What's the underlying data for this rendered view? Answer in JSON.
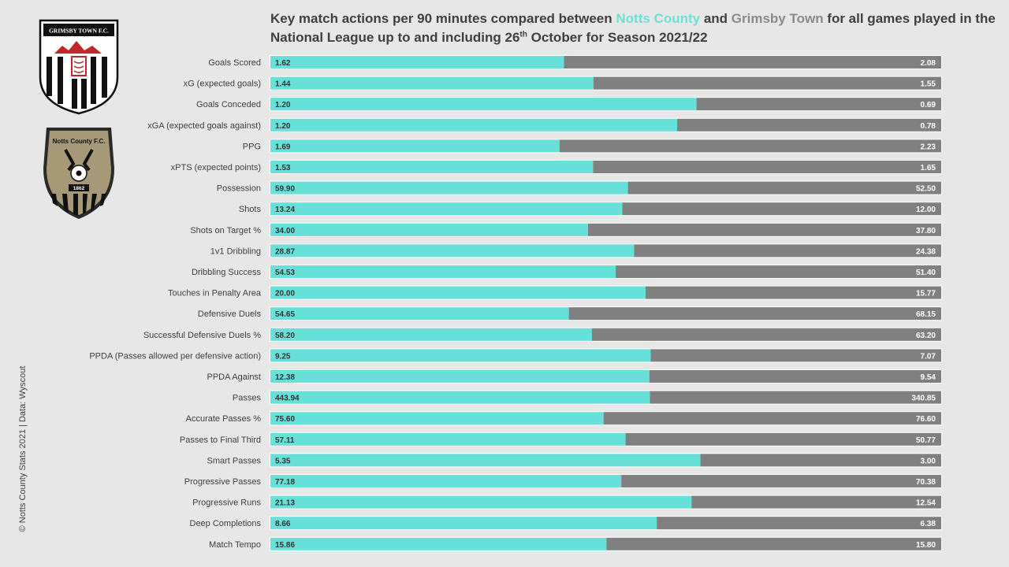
{
  "header": {
    "title_pre": "Key match actions per 90 minutes compared between ",
    "team_a": "Notts County",
    "title_and": " and ",
    "team_b": "Grimsby Town",
    "title_mid": " for all games played in the National League up to and including 26",
    "title_sup": "th",
    "title_post": " October for Season 2021/22"
  },
  "credit": "© Notts County Stats 2021 | Data: Wyscout",
  "logos": {
    "grimsby_text": "GRIMSBY TOWN F.C.",
    "notts_text": "Notts County F.C.",
    "notts_year": "1862"
  },
  "colors": {
    "notts": "#67e0da",
    "grimsby": "#808080",
    "background": "#e7e7e7"
  },
  "chart_data": {
    "type": "bar",
    "orientation": "horizontal",
    "stacked_percent": true,
    "categories": [
      "Goals Scored",
      "xG (expected goals)",
      "Goals Conceded",
      "xGA (expected goals against)",
      "PPG",
      "xPTS (expected points)",
      "Possession",
      "Shots",
      "Shots on Target %",
      "1v1 Dribbling",
      "Dribbling Success",
      "Touches in Penalty Area",
      "Defensive Duels",
      "Successful Defensive Duels %",
      "PPDA (Passes allowed per defensive action)",
      "PPDA Against",
      "Passes",
      "Accurate Passes %",
      "Passes to Final Third",
      "Smart Passes",
      "Progressive Passes",
      "Progressive Runs",
      "Deep Completions",
      "Match Tempo"
    ],
    "series": [
      {
        "name": "Notts County",
        "values": [
          "1.62",
          "1.44",
          "1.20",
          "1.20",
          "1.69",
          "1.53",
          "59.90",
          "13.24",
          "34.00",
          "28.87",
          "54.53",
          "20.00",
          "54.65",
          "58.20",
          "9.25",
          "12.38",
          "443.94",
          "75.60",
          "57.11",
          "5.35",
          "77.18",
          "21.13",
          "8.66",
          "15.86"
        ]
      },
      {
        "name": "Grimsby Town",
        "values": [
          "2.08",
          "1.55",
          "0.69",
          "0.78",
          "2.23",
          "1.65",
          "52.50",
          "12.00",
          "37.80",
          "24.38",
          "51.40",
          "15.77",
          "68.15",
          "63.20",
          "7.07",
          "9.54",
          "340.85",
          "76.60",
          "50.77",
          "3.00",
          "70.38",
          "12.54",
          "6.38",
          "15.80"
        ]
      }
    ]
  }
}
